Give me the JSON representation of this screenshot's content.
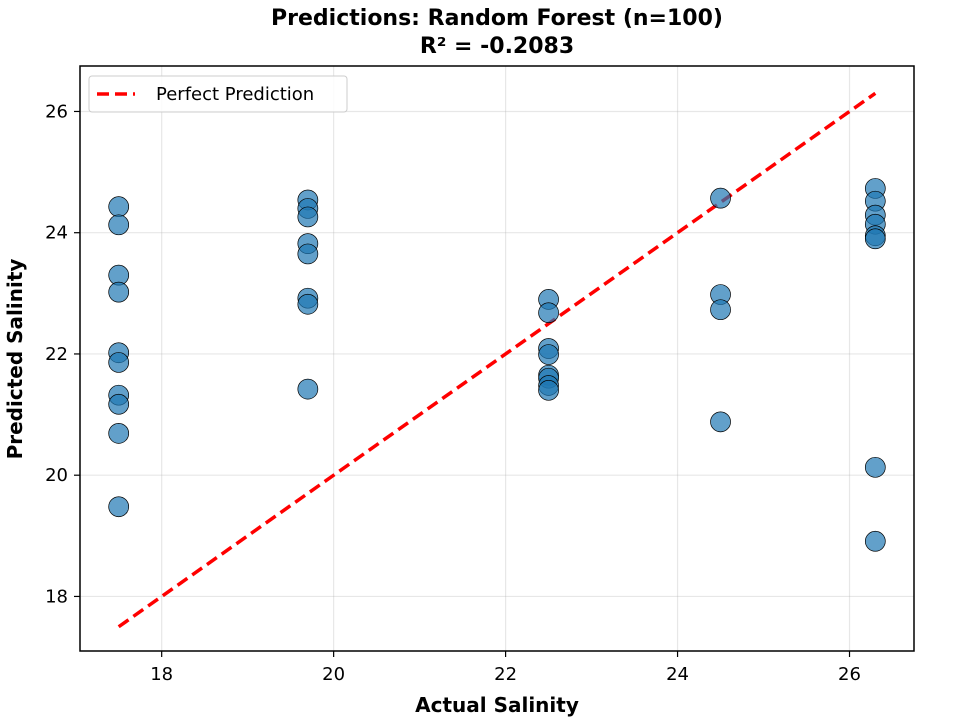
{
  "chart_data": {
    "type": "scatter",
    "title": "Predictions: Random Forest (n=100)",
    "subtitle": "R² = -0.2083",
    "xlabel": "Actual Salinity",
    "ylabel": "Predicted Salinity",
    "xlim": [
      17.05,
      26.75
    ],
    "ylim": [
      17.1,
      26.75
    ],
    "xticks": [
      18,
      20,
      22,
      24,
      26
    ],
    "yticks": [
      18,
      20,
      22,
      24,
      26
    ],
    "grid": true,
    "legend": {
      "position": "top-left",
      "entries": [
        "Perfect Prediction"
      ]
    },
    "series": [
      {
        "kind": "points",
        "color": "#1f77b4",
        "points": [
          {
            "x": 17.5,
            "y": 24.43
          },
          {
            "x": 17.5,
            "y": 24.13
          },
          {
            "x": 17.5,
            "y": 23.3
          },
          {
            "x": 17.5,
            "y": 23.02
          },
          {
            "x": 17.5,
            "y": 22.02
          },
          {
            "x": 17.5,
            "y": 21.86
          },
          {
            "x": 17.5,
            "y": 21.32
          },
          {
            "x": 17.5,
            "y": 21.17
          },
          {
            "x": 17.5,
            "y": 20.69
          },
          {
            "x": 17.5,
            "y": 19.48
          },
          {
            "x": 19.7,
            "y": 24.54
          },
          {
            "x": 19.7,
            "y": 24.4
          },
          {
            "x": 19.7,
            "y": 24.26
          },
          {
            "x": 19.7,
            "y": 23.82
          },
          {
            "x": 19.7,
            "y": 23.65
          },
          {
            "x": 19.7,
            "y": 22.92
          },
          {
            "x": 19.7,
            "y": 22.82
          },
          {
            "x": 19.7,
            "y": 21.42
          },
          {
            "x": 22.5,
            "y": 22.9
          },
          {
            "x": 22.5,
            "y": 22.68
          },
          {
            "x": 22.5,
            "y": 22.09
          },
          {
            "x": 22.5,
            "y": 21.99
          },
          {
            "x": 22.5,
            "y": 21.65
          },
          {
            "x": 22.5,
            "y": 21.6
          },
          {
            "x": 22.5,
            "y": 21.48
          },
          {
            "x": 22.5,
            "y": 21.4
          },
          {
            "x": 24.5,
            "y": 24.57
          },
          {
            "x": 24.5,
            "y": 22.98
          },
          {
            "x": 24.5,
            "y": 22.73
          },
          {
            "x": 24.5,
            "y": 20.88
          },
          {
            "x": 26.3,
            "y": 24.73
          },
          {
            "x": 26.3,
            "y": 24.52
          },
          {
            "x": 26.3,
            "y": 24.29
          },
          {
            "x": 26.3,
            "y": 24.14
          },
          {
            "x": 26.3,
            "y": 23.95
          },
          {
            "x": 26.3,
            "y": 23.9
          },
          {
            "x": 26.3,
            "y": 20.13
          },
          {
            "x": 26.3,
            "y": 18.91
          }
        ]
      },
      {
        "kind": "line",
        "name": "Perfect Prediction",
        "color": "#ff0000",
        "style": "dashed",
        "x": [
          17.5,
          26.3
        ],
        "y": [
          17.5,
          26.3
        ]
      }
    ]
  }
}
